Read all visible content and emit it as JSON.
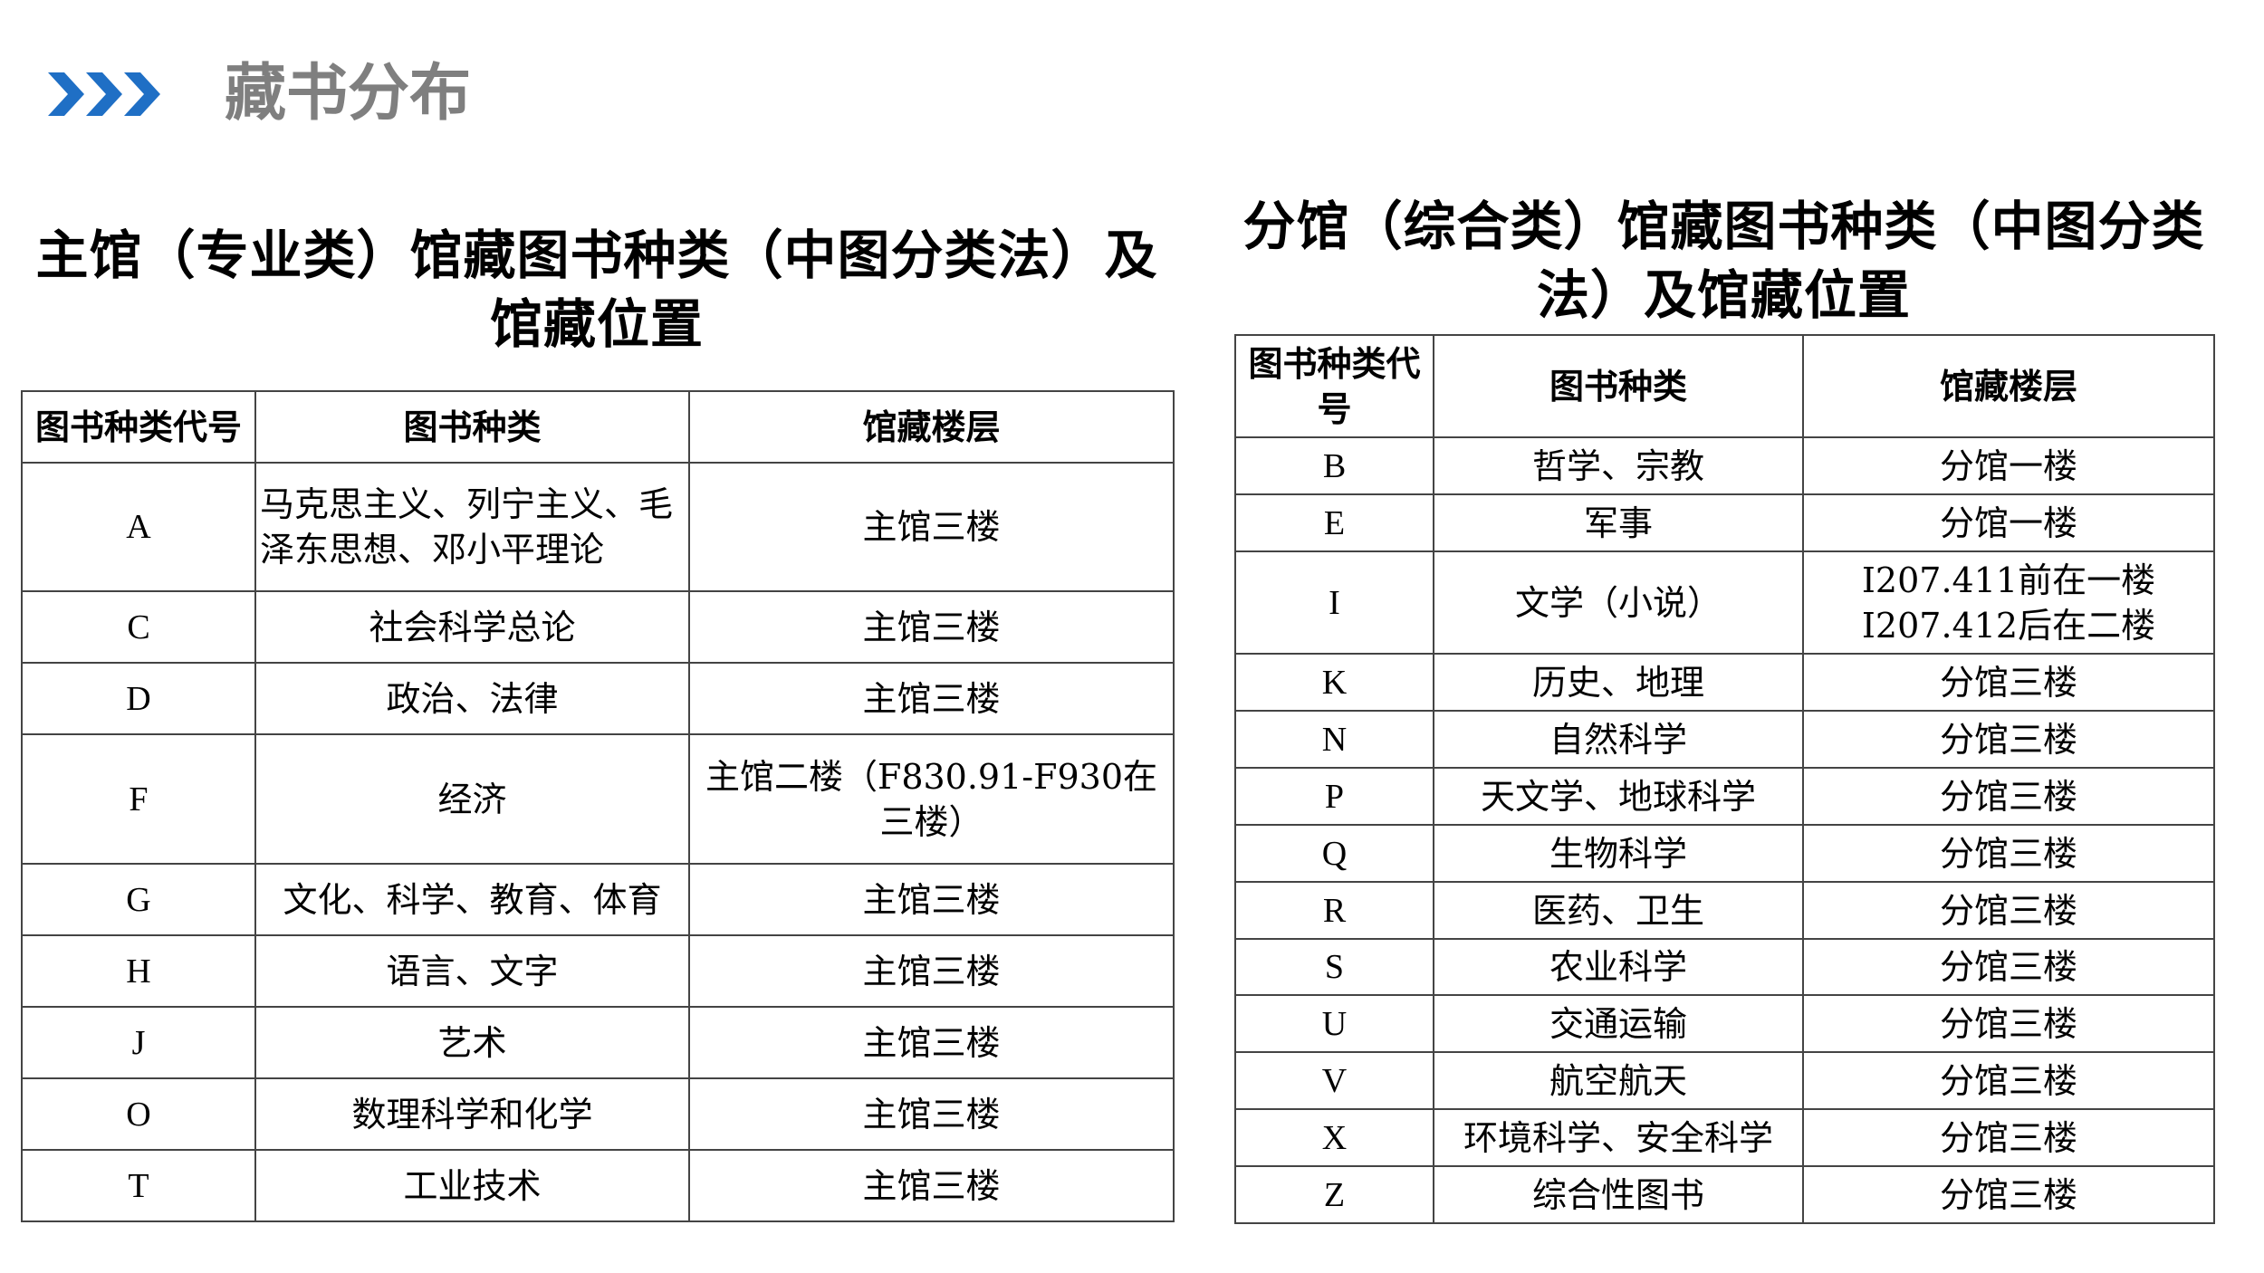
{
  "header": {
    "title": "藏书分布",
    "accent_color": "#1f6fc5",
    "title_color": "#7f7f7f",
    "icon": "triple-chevron-right-icon"
  },
  "main_table": {
    "title": "主馆（专业类）馆藏图书种类（中图分类法）及馆藏位置",
    "columns": [
      "图书种类代号",
      "图书种类",
      "馆藏楼层"
    ],
    "rows": [
      {
        "code": "A",
        "category": "马克思主义、列宁主义、毛泽东思想、邓小平理论",
        "floor": "主馆三楼"
      },
      {
        "code": "C",
        "category": "社会科学总论",
        "floor": "主馆三楼"
      },
      {
        "code": "D",
        "category": "政治、法律",
        "floor": "主馆三楼"
      },
      {
        "code": "F",
        "category": "经济",
        "floor": "主馆二楼（F830.91-F930在三楼）"
      },
      {
        "code": "G",
        "category": "文化、科学、教育、体育",
        "floor": "主馆三楼"
      },
      {
        "code": "H",
        "category": "语言、文字",
        "floor": "主馆三楼"
      },
      {
        "code": "J",
        "category": "艺术",
        "floor": "主馆三楼"
      },
      {
        "code": "O",
        "category": "数理科学和化学",
        "floor": "主馆三楼"
      },
      {
        "code": "T",
        "category": "工业技术",
        "floor": "主馆三楼"
      }
    ]
  },
  "branch_table": {
    "title": "分馆（综合类）馆藏图书种类（中图分类法）及馆藏位置",
    "columns": [
      "图书种类代号",
      "图书种类",
      "馆藏楼层"
    ],
    "rows": [
      {
        "code": "B",
        "category": "哲学、宗教",
        "floor": "分馆一楼"
      },
      {
        "code": "E",
        "category": "军事",
        "floor": "分馆一楼"
      },
      {
        "code": "I",
        "category": "文学（小说）",
        "floor": "I207.411前在一楼 I207.412后在二楼"
      },
      {
        "code": "K",
        "category": "历史、地理",
        "floor": "分馆三楼"
      },
      {
        "code": "N",
        "category": "自然科学",
        "floor": "分馆三楼"
      },
      {
        "code": "P",
        "category": "天文学、地球科学",
        "floor": "分馆三楼"
      },
      {
        "code": "Q",
        "category": "生物科学",
        "floor": "分馆三楼"
      },
      {
        "code": "R",
        "category": "医药、卫生",
        "floor": "分馆三楼"
      },
      {
        "code": "S",
        "category": "农业科学",
        "floor": "分馆三楼"
      },
      {
        "code": "U",
        "category": "交通运输",
        "floor": "分馆三楼"
      },
      {
        "code": "V",
        "category": "航空航天",
        "floor": "分馆三楼"
      },
      {
        "code": "X",
        "category": "环境科学、安全科学",
        "floor": "分馆三楼"
      },
      {
        "code": "Z",
        "category": "综合性图书",
        "floor": "分馆三楼"
      }
    ]
  }
}
